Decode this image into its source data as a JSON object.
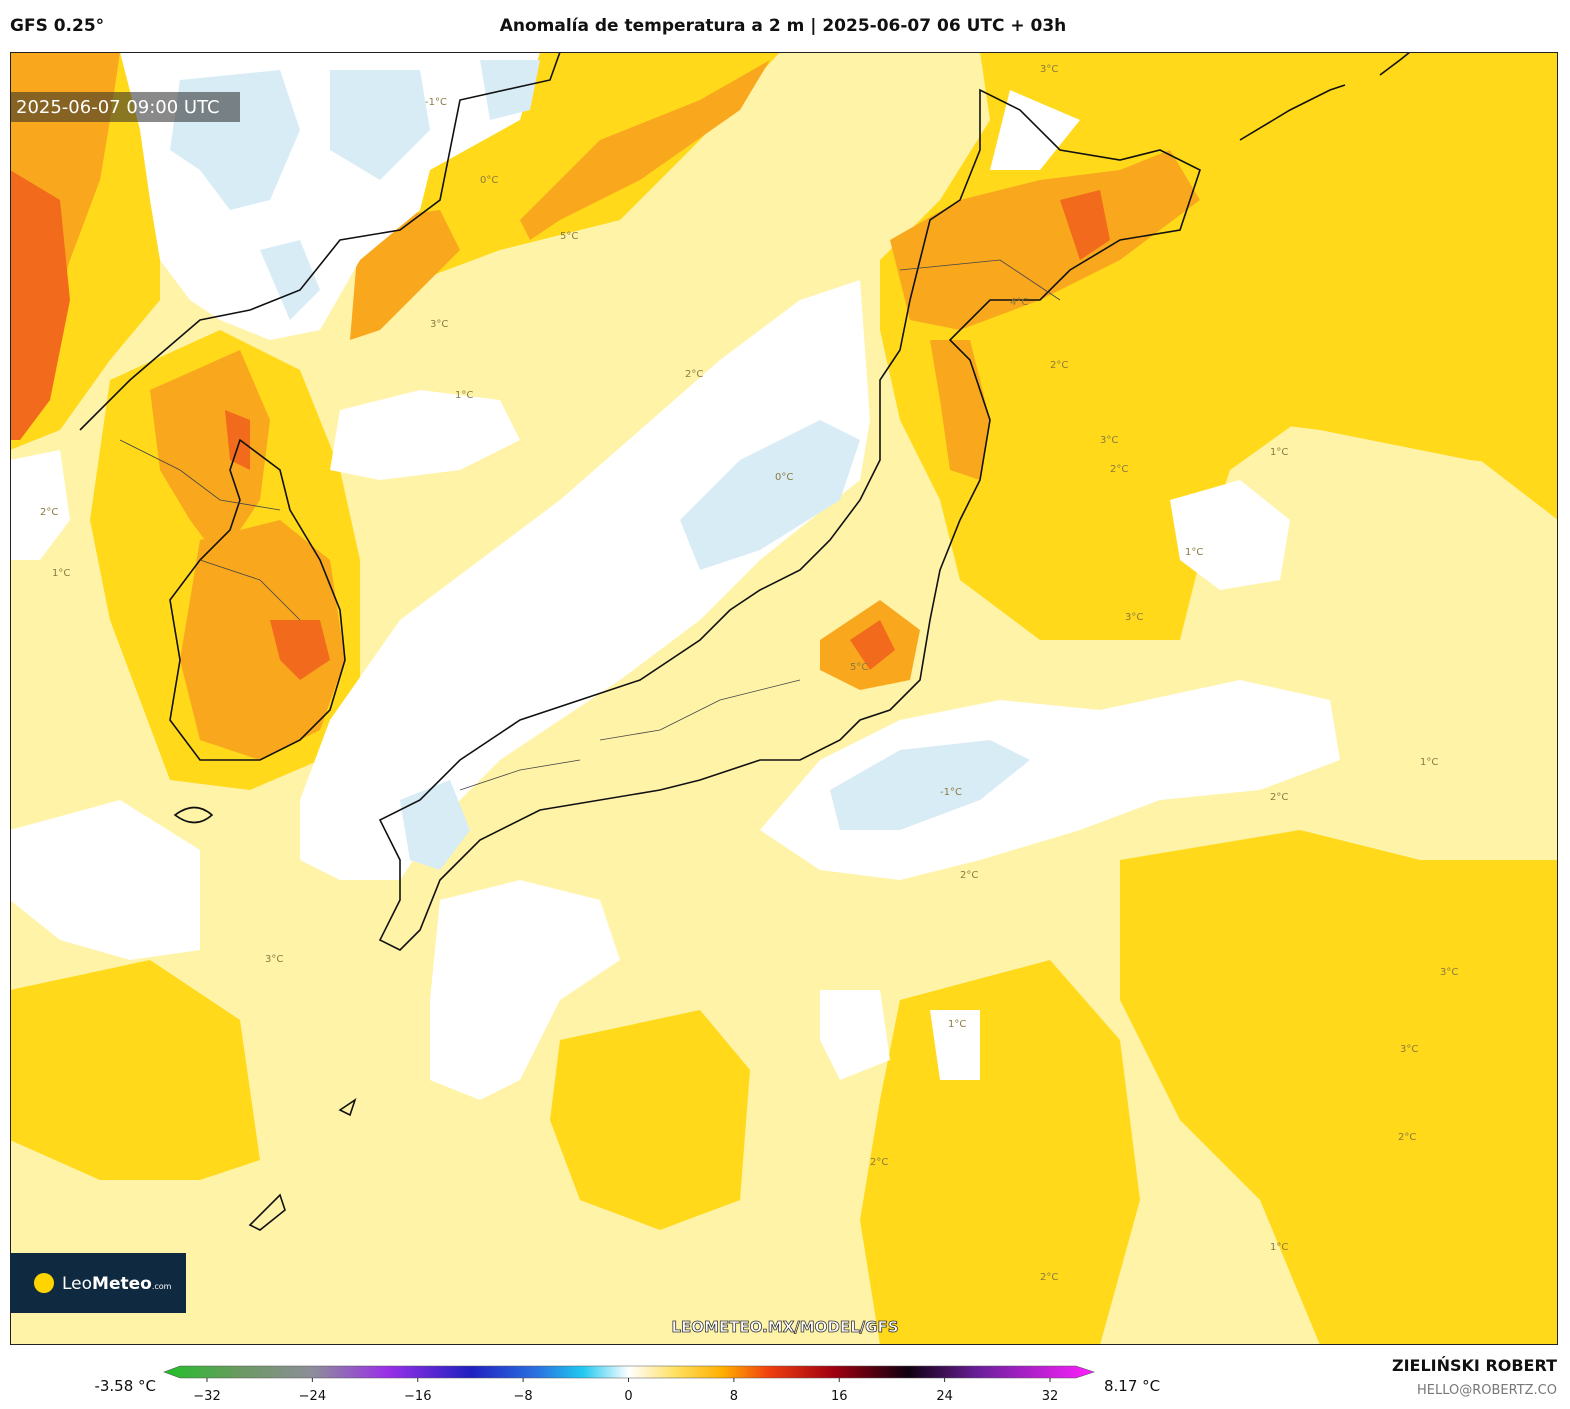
{
  "header": {
    "model": "GFS 0.25°",
    "title": "Anomalía de temperatura a 2 m | 2025-06-07 06 UTC + 03h"
  },
  "map": {
    "valid_time": "2025-06-07 09:00 UTC",
    "url": "LEOMETEO.MX/MODEL/GFS",
    "logo": {
      "brand_light": "Leo",
      "brand_bold": "Meteo",
      "suffix": ".com"
    },
    "contour_labels": [
      "2°C",
      "1°C",
      "0°C",
      "3°C",
      "5°C",
      "1°C",
      "0°C",
      "-1°C",
      "2°C",
      "3°C",
      "2°C",
      "1°C",
      "3°C",
      "2°C",
      "1°C",
      "-1°C",
      "2°C",
      "3°C",
      "1°C",
      "2°C",
      "3°C",
      "1°C",
      "2°C",
      "2°C",
      "3°C",
      "5°C",
      "1°C",
      "2°C",
      "4°C",
      "3°C"
    ]
  },
  "colorbar": {
    "min_label": "-3.58 °C",
    "max_label": "8.17 °C",
    "ticks": [
      {
        "value": -32,
        "label": "−32"
      },
      {
        "value": -24,
        "label": "−24"
      },
      {
        "value": -16,
        "label": "−16"
      },
      {
        "value": -8,
        "label": "−8"
      },
      0,
      8,
      16,
      24,
      32
    ]
  },
  "footer": {
    "author": "ZIELIŃSKI ROBERT",
    "email": "HELLO@ROBERTZ.CO"
  }
}
